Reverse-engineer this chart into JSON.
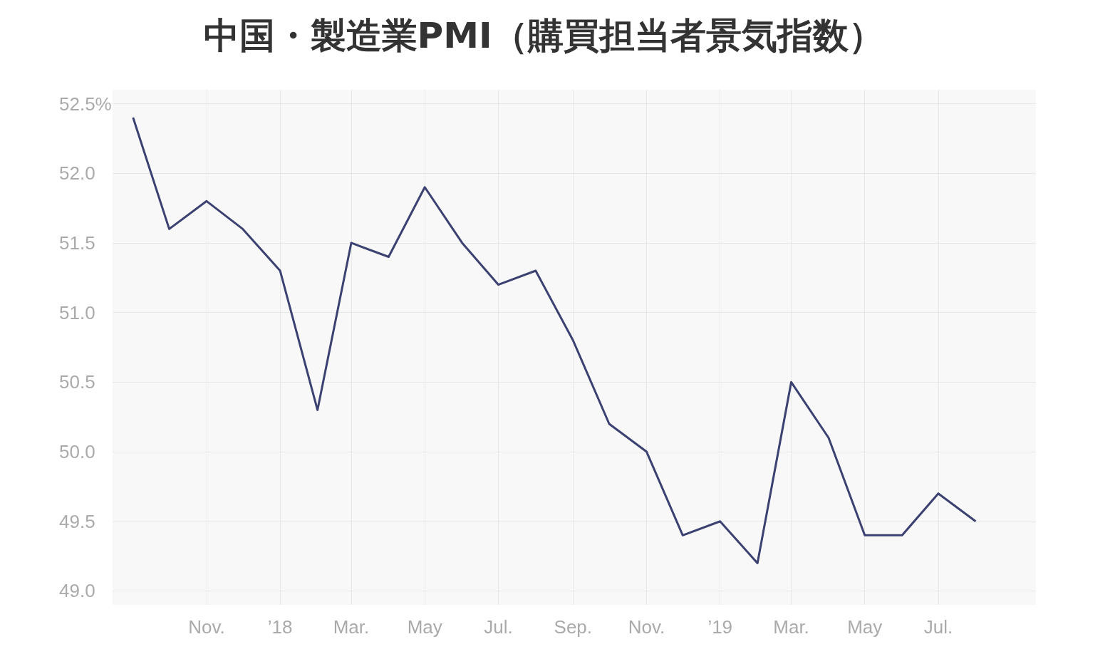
{
  "chart_data": {
    "type": "line",
    "title": "中国・製造業PMI（購買担当者景気指数）",
    "x": [
      "2017-09",
      "2017-10",
      "2017-11",
      "2017-12",
      "2018-01",
      "2018-02",
      "2018-03",
      "2018-04",
      "2018-05",
      "2018-06",
      "2018-07",
      "2018-08",
      "2018-09",
      "2018-10",
      "2018-11",
      "2018-12",
      "2019-01",
      "2019-02",
      "2019-03",
      "2019-04",
      "2019-05",
      "2019-06",
      "2019-07",
      "2019-08"
    ],
    "series": [
      {
        "color": "#3b4170",
        "values": [
          52.4,
          51.6,
          51.8,
          51.6,
          51.3,
          50.3,
          51.5,
          51.4,
          51.9,
          51.5,
          51.2,
          51.3,
          50.8,
          50.2,
          50.0,
          49.4,
          49.5,
          49.2,
          50.5,
          50.1,
          49.4,
          49.4,
          49.7,
          49.5
        ]
      }
    ],
    "xlim": [
      "2017-08-15",
      "2019-09-20"
    ],
    "xticks": [
      {
        "value": "2017-11",
        "label": "Nov."
      },
      {
        "value": "2018-01",
        "label": "’18"
      },
      {
        "value": "2018-03",
        "label": "Mar."
      },
      {
        "value": "2018-05",
        "label": "May"
      },
      {
        "value": "2018-07",
        "label": "Jul."
      },
      {
        "value": "2018-09",
        "label": "Sep."
      },
      {
        "value": "2018-11",
        "label": "Nov."
      },
      {
        "value": "2019-01",
        "label": "’19"
      },
      {
        "value": "2019-03",
        "label": "Mar."
      },
      {
        "value": "2019-05",
        "label": "May"
      },
      {
        "value": "2019-07",
        "label": "Jul."
      }
    ],
    "ylim": [
      48.9,
      52.6
    ],
    "yticks": [
      {
        "value": 49.0,
        "label": "49.0"
      },
      {
        "value": 49.5,
        "label": "49.5"
      },
      {
        "value": 50.0,
        "label": "50.0"
      },
      {
        "value": 50.5,
        "label": "50.5"
      },
      {
        "value": 51.0,
        "label": "51.0"
      },
      {
        "value": 51.5,
        "label": "51.5"
      },
      {
        "value": 52.0,
        "label": "52.0"
      },
      {
        "value": 52.5,
        "label": "52.5%"
      }
    ],
    "grid": true,
    "marker": "none",
    "line_style": "solid"
  }
}
